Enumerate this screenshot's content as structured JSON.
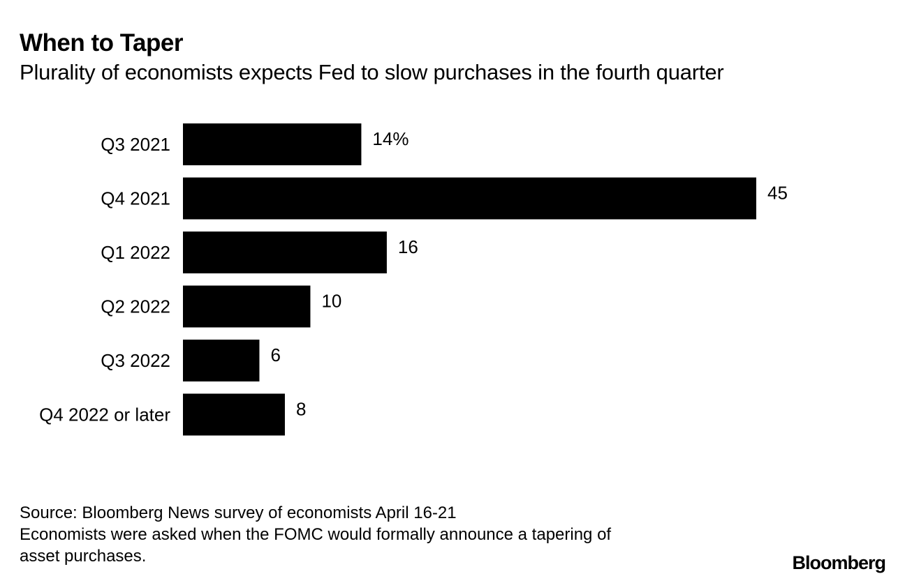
{
  "header": {
    "title": "When to Taper",
    "subtitle": "Plurality of economists expects Fed to slow purchases in the fourth quarter"
  },
  "chart_data": {
    "type": "bar",
    "orientation": "horizontal",
    "title": "When to Taper",
    "subtitle": "Plurality of economists expects Fed to slow purchases in the fourth quarter",
    "categories": [
      "Q3 2021",
      "Q4 2021",
      "Q1 2022",
      "Q2 2022",
      "Q3 2022",
      "Q4 2022 or later"
    ],
    "values": [
      14,
      45,
      16,
      10,
      6,
      8
    ],
    "value_labels": [
      "14%",
      "45",
      "16",
      "10",
      "6",
      "8"
    ],
    "unit": "%",
    "xlabel": "",
    "ylabel": "",
    "xlim": [
      0,
      45
    ],
    "grid": false,
    "bar_color": "#000000"
  },
  "footer": {
    "source": "Source: Bloomberg News survey of economists April 16-21",
    "note_line1": "Economists were asked when the FOMC would formally announce a tapering of",
    "note_line2": "asset purchases.",
    "brand": "Bloomberg"
  }
}
